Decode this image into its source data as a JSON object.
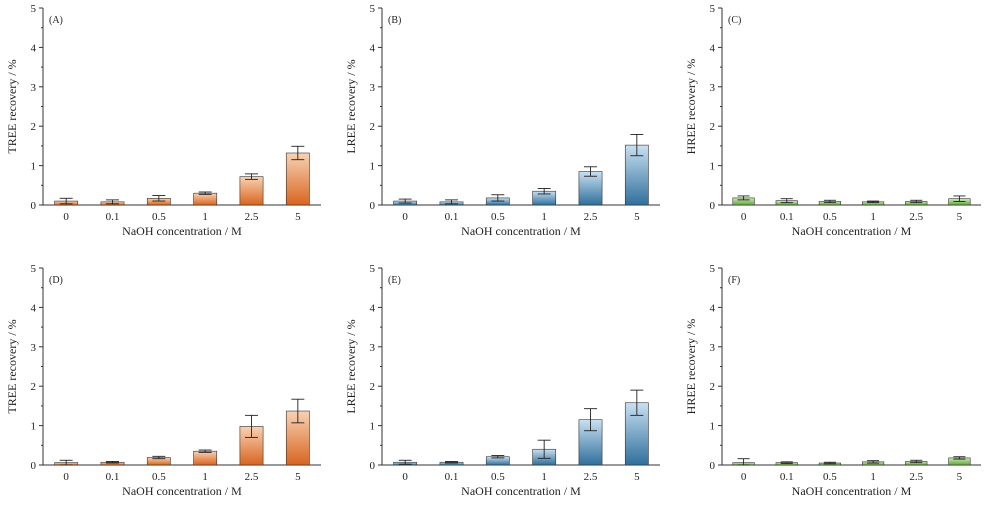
{
  "colors": {
    "orange_top": "#f8d2b4",
    "orange_bottom": "#d8651f",
    "blue_top": "#c9e0f1",
    "blue_bottom": "#2f6f9c",
    "green_top": "#cfeab0",
    "green_bottom": "#5ea83d",
    "axis": "#333333",
    "error_bar": "#222222"
  },
  "chart_data": [
    {
      "type": "bar",
      "panel_label": "(A)",
      "ylabel": "TREE recovery / %",
      "xlabel": "NaOH concentration / M",
      "categories": [
        "0",
        "0.1",
        "0.5",
        "1",
        "2.5",
        "5"
      ],
      "values": [
        0.1,
        0.08,
        0.17,
        0.3,
        0.72,
        1.32
      ],
      "errors": [
        0.07,
        0.05,
        0.07,
        0.03,
        0.07,
        0.17
      ],
      "ylim": [
        0,
        5
      ],
      "yticks": [
        "0",
        "1",
        "2",
        "3",
        "4",
        "5"
      ],
      "color": "orange"
    },
    {
      "type": "bar",
      "panel_label": "(B)",
      "ylabel": "LREE recovery / %",
      "xlabel": "NaOH concentration / M",
      "categories": [
        "0",
        "0.1",
        "0.5",
        "1",
        "2.5",
        "5"
      ],
      "values": [
        0.1,
        0.08,
        0.18,
        0.35,
        0.85,
        1.52
      ],
      "errors": [
        0.05,
        0.05,
        0.08,
        0.07,
        0.12,
        0.27
      ],
      "ylim": [
        0,
        5
      ],
      "yticks": [
        "0",
        "1",
        "2",
        "3",
        "4",
        "5"
      ],
      "color": "blue"
    },
    {
      "type": "bar",
      "panel_label": "(C)",
      "ylabel": "HREE recovery / %",
      "xlabel": "NaOH concentration / M",
      "categories": [
        "0",
        "0.1",
        "0.5",
        "1",
        "2.5",
        "5"
      ],
      "values": [
        0.18,
        0.11,
        0.09,
        0.08,
        0.09,
        0.16
      ],
      "errors": [
        0.05,
        0.05,
        0.03,
        0.02,
        0.03,
        0.07
      ],
      "ylim": [
        0,
        5
      ],
      "yticks": [
        "0",
        "1",
        "2",
        "3",
        "4",
        "5"
      ],
      "color": "green"
    },
    {
      "type": "bar",
      "panel_label": "(D)",
      "ylabel": "TREE recovery / %",
      "xlabel": "NaOH concentration / M",
      "categories": [
        "0",
        "0.1",
        "0.5",
        "1",
        "2.5",
        "5"
      ],
      "values": [
        0.06,
        0.07,
        0.19,
        0.35,
        0.98,
        1.37
      ],
      "errors": [
        0.06,
        0.02,
        0.03,
        0.03,
        0.28,
        0.3
      ],
      "ylim": [
        0,
        5
      ],
      "yticks": [
        "0",
        "1",
        "2",
        "3",
        "4",
        "5"
      ],
      "color": "orange"
    },
    {
      "type": "bar",
      "panel_label": "(E)",
      "ylabel": "LREE recovery / %",
      "xlabel": "NaOH concentration / M",
      "categories": [
        "0",
        "0.1",
        "0.5",
        "1",
        "2.5",
        "5"
      ],
      "values": [
        0.07,
        0.07,
        0.21,
        0.4,
        1.15,
        1.58
      ],
      "errors": [
        0.05,
        0.02,
        0.03,
        0.23,
        0.28,
        0.32
      ],
      "ylim": [
        0,
        5
      ],
      "yticks": [
        "0",
        "1",
        "2",
        "3",
        "4",
        "5"
      ],
      "color": "blue"
    },
    {
      "type": "bar",
      "panel_label": "(F)",
      "ylabel": "HREE recovery / %",
      "xlabel": "NaOH concentration / M",
      "categories": [
        "0",
        "0.1",
        "0.5",
        "1",
        "2.5",
        "5"
      ],
      "values": [
        0.06,
        0.06,
        0.05,
        0.08,
        0.09,
        0.18
      ],
      "errors": [
        0.1,
        0.02,
        0.02,
        0.03,
        0.03,
        0.03
      ],
      "ylim": [
        0,
        5
      ],
      "yticks": [
        "0",
        "1",
        "2",
        "3",
        "4",
        "5"
      ],
      "color": "green"
    }
  ]
}
